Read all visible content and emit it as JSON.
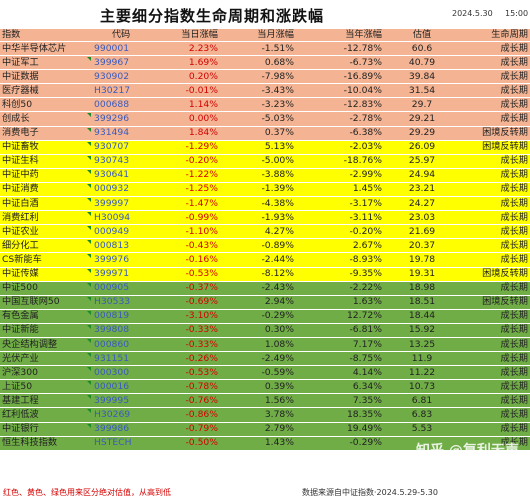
{
  "title": "主要细分指数生命周期和涨跌幅",
  "date": "2024.5.30",
  "time": "15:00",
  "headers": {
    "name": "指数",
    "code": "代码",
    "day": "当日涨幅",
    "week": "当月涨幅",
    "year": "当年涨幅",
    "valuation": "估值",
    "stage": "生命周期"
  },
  "colors": {
    "group0": "#f4b493",
    "group1": "#ffff00",
    "group2": "#70ad47",
    "down_red": "#d40000",
    "code_blue": "#3a5bbf"
  },
  "rows": [
    {
      "name": "中华半导体芯片",
      "code": "990001",
      "day": "2.23%",
      "week": "-1.51%",
      "year": "-12.78%",
      "valuation": "60.6",
      "stage": "成长期",
      "group": 0
    },
    {
      "name": "中证军工",
      "code": "399967",
      "day": "1.69%",
      "week": "0.68%",
      "year": "-6.73%",
      "valuation": "40.79",
      "stage": "成长期",
      "group": 0
    },
    {
      "name": "中证数据",
      "code": "930902",
      "day": "0.20%",
      "week": "-7.98%",
      "year": "-16.89%",
      "valuation": "39.84",
      "stage": "成长期",
      "group": 0
    },
    {
      "name": "医疗器械",
      "code": "H30217",
      "day": "-0.01%",
      "week": "-3.43%",
      "year": "-10.04%",
      "valuation": "31.54",
      "stage": "成长期",
      "group": 0
    },
    {
      "name": "科创50",
      "code": "000688",
      "day": "1.14%",
      "week": "-3.23%",
      "year": "-12.83%",
      "valuation": "29.7",
      "stage": "成长期",
      "group": 0
    },
    {
      "name": "创成长",
      "code": "399296",
      "day": "0.00%",
      "week": "-5.03%",
      "year": "-2.78%",
      "valuation": "29.21",
      "stage": "成长期",
      "group": 0
    },
    {
      "name": "消费电子",
      "code": "931494",
      "day": "1.84%",
      "week": "0.37%",
      "year": "-6.38%",
      "valuation": "29.29",
      "stage": "困境反转期",
      "group": 0
    },
    {
      "name": "中证畜牧",
      "code": "930707",
      "day": "-1.29%",
      "week": "5.13%",
      "year": "-2.03%",
      "valuation": "26.09",
      "stage": "困境反转期",
      "group": 1
    },
    {
      "name": "中证生科",
      "code": "930743",
      "day": "-0.20%",
      "week": "-5.00%",
      "year": "-18.76%",
      "valuation": "25.97",
      "stage": "成长期",
      "group": 1
    },
    {
      "name": "中证中药",
      "code": "930641",
      "day": "-1.22%",
      "week": "-3.88%",
      "year": "-2.99%",
      "valuation": "24.94",
      "stage": "成长期",
      "group": 1
    },
    {
      "name": "中证消费",
      "code": "000932",
      "day": "-1.25%",
      "week": "-1.39%",
      "year": "1.45%",
      "valuation": "23.21",
      "stage": "成长期",
      "group": 1
    },
    {
      "name": "中证白酒",
      "code": "399997",
      "day": "-1.47%",
      "week": "-4.38%",
      "year": "-3.17%",
      "valuation": "24.27",
      "stage": "成长期",
      "group": 1
    },
    {
      "name": "消费红利",
      "code": "H30094",
      "day": "-0.99%",
      "week": "-1.93%",
      "year": "-3.11%",
      "valuation": "23.03",
      "stage": "成长期",
      "group": 1
    },
    {
      "name": "中证农业",
      "code": "000949",
      "day": "-1.10%",
      "week": "4.27%",
      "year": "-0.20%",
      "valuation": "21.69",
      "stage": "成长期",
      "group": 1
    },
    {
      "name": "细分化工",
      "code": "000813",
      "day": "-0.43%",
      "week": "-0.89%",
      "year": "2.67%",
      "valuation": "20.37",
      "stage": "成长期",
      "group": 1
    },
    {
      "name": "CS新能车",
      "code": "399976",
      "day": "-0.16%",
      "week": "-2.44%",
      "year": "-8.93%",
      "valuation": "19.78",
      "stage": "成长期",
      "group": 1
    },
    {
      "name": "中证传媒",
      "code": "399971",
      "day": "-0.53%",
      "week": "-8.12%",
      "year": "-9.35%",
      "valuation": "19.31",
      "stage": "困境反转期",
      "group": 1
    },
    {
      "name": "中证500",
      "code": "000905",
      "day": "-0.37%",
      "week": "-2.43%",
      "year": "-2.22%",
      "valuation": "18.98",
      "stage": "成长期",
      "group": 2
    },
    {
      "name": "中国互联网50",
      "code": "H30533",
      "day": "-0.69%",
      "week": "2.94%",
      "year": "1.63%",
      "valuation": "18.51",
      "stage": "困境反转期",
      "group": 2
    },
    {
      "name": "有色金属",
      "code": "000819",
      "day": "-3.10%",
      "week": "-0.29%",
      "year": "12.72%",
      "valuation": "18.44",
      "stage": "成长期",
      "group": 2
    },
    {
      "name": "中证新能",
      "code": "399808",
      "day": "-0.33%",
      "week": "0.30%",
      "year": "-6.81%",
      "valuation": "15.92",
      "stage": "成长期",
      "group": 2
    },
    {
      "name": "央企结构调整",
      "code": "000860",
      "day": "-0.33%",
      "week": "1.08%",
      "year": "7.17%",
      "valuation": "13.25",
      "stage": "成长期",
      "group": 2
    },
    {
      "name": "光伏产业",
      "code": "931151",
      "day": "-0.26%",
      "week": "-2.49%",
      "year": "-8.75%",
      "valuation": "11.9",
      "stage": "成长期",
      "group": 2
    },
    {
      "name": "沪深300",
      "code": "000300",
      "day": "-0.53%",
      "week": "-0.59%",
      "year": "4.14%",
      "valuation": "11.22",
      "stage": "成长期",
      "group": 2
    },
    {
      "name": "上证50",
      "code": "000016",
      "day": "-0.78%",
      "week": "0.39%",
      "year": "6.34%",
      "valuation": "10.73",
      "stage": "成长期",
      "group": 2
    },
    {
      "name": "基建工程",
      "code": "399995",
      "day": "-0.76%",
      "week": "1.56%",
      "year": "7.35%",
      "valuation": "6.81",
      "stage": "成长期",
      "group": 2
    },
    {
      "name": "红利低波",
      "code": "H30269",
      "day": "-0.86%",
      "week": "3.78%",
      "year": "18.35%",
      "valuation": "6.83",
      "stage": "成长期",
      "group": 2
    },
    {
      "name": "中证银行",
      "code": "399986",
      "day": "-0.79%",
      "week": "2.79%",
      "year": "19.49%",
      "valuation": "5.53",
      "stage": "成长期",
      "group": 2
    },
    {
      "name": "恒生科技指数",
      "code": "HSTECH",
      "day": "-0.50%",
      "week": "1.43%",
      "year": "-0.29%",
      "valuation": "",
      "stage": "成长期",
      "group": 2
    }
  ],
  "footer_left": "红色、黄色、绿色用来区分绝对估值，从高到低",
  "footer_right": "数据来源自中证指数·2024.5.29-5.30",
  "watermark": "知乎 @复利无声"
}
